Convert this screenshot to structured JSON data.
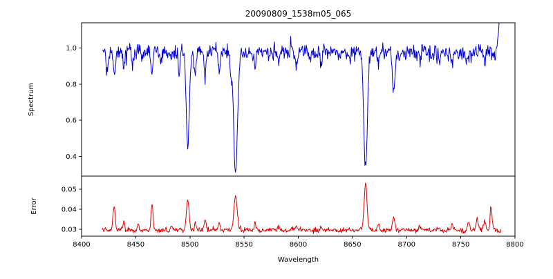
{
  "figure": {
    "title": "20090809_1538m05_065",
    "xlabel": "Wavelength",
    "panels": {
      "top_ylabel": "Spectrum",
      "bottom_ylabel": "Error"
    },
    "colors": {
      "spectrum_line": "#0000cc",
      "error_line": "#dd0000",
      "axis": "#000000",
      "background": "#ffffff"
    }
  },
  "chart_data": [
    {
      "type": "line",
      "name": "spectrum",
      "title": "20090809_1538m05_065",
      "xlabel": "Wavelength",
      "ylabel": "Spectrum",
      "legend": "none",
      "grid": false,
      "color": "#0000cc",
      "xlim": [
        8400,
        8800
      ],
      "ylim": [
        0.29,
        1.14
      ],
      "x_ticks": [
        8400,
        8450,
        8500,
        8550,
        8600,
        8650,
        8700,
        8750,
        8800
      ],
      "y_ticks": [
        0.4,
        0.6,
        0.8,
        1.0
      ],
      "y_tick_decimals": 1,
      "x_start": 8419,
      "x_end": 8787,
      "x_step": 0.5,
      "continuum": 0.975,
      "noise_sigma": 0.022,
      "absorption_lines": [
        {
          "center": 8423.5,
          "depth": 0.1,
          "width": 0.8
        },
        {
          "center": 8430.0,
          "depth": 0.13,
          "width": 0.9
        },
        {
          "center": 8439.0,
          "depth": 0.1,
          "width": 0.8
        },
        {
          "center": 8446.5,
          "depth": 0.08,
          "width": 0.7
        },
        {
          "center": 8465.0,
          "depth": 0.12,
          "width": 0.8
        },
        {
          "center": 8473.0,
          "depth": 0.07,
          "width": 0.7
        },
        {
          "center": 8490.0,
          "depth": 0.1,
          "width": 0.8
        },
        {
          "center": 8498.0,
          "depth": 0.53,
          "width": 1.4
        },
        {
          "center": 8505.0,
          "depth": 0.1,
          "width": 0.8
        },
        {
          "center": 8514.0,
          "depth": 0.13,
          "width": 0.9
        },
        {
          "center": 8527.0,
          "depth": 0.09,
          "width": 0.8
        },
        {
          "center": 8538.0,
          "depth": 0.1,
          "width": 0.7
        },
        {
          "center": 8542.1,
          "depth": 0.66,
          "width": 1.8
        },
        {
          "center": 8560.0,
          "depth": 0.07,
          "width": 0.7
        },
        {
          "center": 8582.0,
          "depth": 0.06,
          "width": 0.7
        },
        {
          "center": 8598.0,
          "depth": 0.07,
          "width": 0.7
        },
        {
          "center": 8611.0,
          "depth": 0.06,
          "width": 0.6
        },
        {
          "center": 8621.0,
          "depth": 0.07,
          "width": 0.7
        },
        {
          "center": 8648.0,
          "depth": 0.06,
          "width": 0.6
        },
        {
          "center": 8662.1,
          "depth": 0.65,
          "width": 1.6
        },
        {
          "center": 8674.0,
          "depth": 0.07,
          "width": 0.7
        },
        {
          "center": 8688.0,
          "depth": 0.24,
          "width": 1.1
        },
        {
          "center": 8712.0,
          "depth": 0.06,
          "width": 0.7
        },
        {
          "center": 8730.0,
          "depth": 0.06,
          "width": 0.6
        },
        {
          "center": 8742.0,
          "depth": 0.07,
          "width": 0.7
        },
        {
          "center": 8757.0,
          "depth": 0.06,
          "width": 0.6
        },
        {
          "center": 8772.0,
          "depth": 0.08,
          "width": 0.7
        },
        {
          "center": 8787.0,
          "depth": -0.3,
          "width": 1.5
        }
      ]
    },
    {
      "type": "line",
      "name": "error",
      "ylabel": "Error",
      "legend": "none",
      "grid": false,
      "color": "#dd0000",
      "xlim": [
        8400,
        8800
      ],
      "ylim": [
        0.0265,
        0.0565
      ],
      "y_ticks": [
        0.03,
        0.04,
        0.05
      ],
      "y_tick_decimals": 2,
      "x_start": 8419,
      "x_end": 8787,
      "x_step": 0.5,
      "baseline": 0.0295,
      "noise_sigma": 0.0006,
      "peaks": [
        {
          "center": 8430.0,
          "height": 0.012,
          "width": 1.0
        },
        {
          "center": 8439.0,
          "height": 0.004,
          "width": 0.8
        },
        {
          "center": 8452.0,
          "height": 0.003,
          "width": 0.8
        },
        {
          "center": 8465.0,
          "height": 0.013,
          "width": 0.9
        },
        {
          "center": 8483.0,
          "height": 0.003,
          "width": 0.8
        },
        {
          "center": 8498.0,
          "height": 0.0155,
          "width": 1.2
        },
        {
          "center": 8505.0,
          "height": 0.004,
          "width": 0.8
        },
        {
          "center": 8514.0,
          "height": 0.005,
          "width": 0.9
        },
        {
          "center": 8527.0,
          "height": 0.004,
          "width": 0.8
        },
        {
          "center": 8542.1,
          "height": 0.017,
          "width": 1.5
        },
        {
          "center": 8560.0,
          "height": 0.004,
          "width": 0.8
        },
        {
          "center": 8582.0,
          "height": 0.002,
          "width": 0.8
        },
        {
          "center": 8598.0,
          "height": 0.003,
          "width": 0.8
        },
        {
          "center": 8621.0,
          "height": 0.002,
          "width": 0.8
        },
        {
          "center": 8662.1,
          "height": 0.0235,
          "width": 1.3
        },
        {
          "center": 8674.0,
          "height": 0.003,
          "width": 0.8
        },
        {
          "center": 8688.0,
          "height": 0.006,
          "width": 1.0
        },
        {
          "center": 8712.0,
          "height": 0.002,
          "width": 0.8
        },
        {
          "center": 8730.0,
          "height": 0.002,
          "width": 0.8
        },
        {
          "center": 8742.0,
          "height": 0.003,
          "width": 0.8
        },
        {
          "center": 8757.0,
          "height": 0.004,
          "width": 1.0
        },
        {
          "center": 8765.0,
          "height": 0.005,
          "width": 1.2
        },
        {
          "center": 8772.0,
          "height": 0.005,
          "width": 1.0
        },
        {
          "center": 8778.0,
          "height": 0.012,
          "width": 0.9
        }
      ]
    }
  ]
}
